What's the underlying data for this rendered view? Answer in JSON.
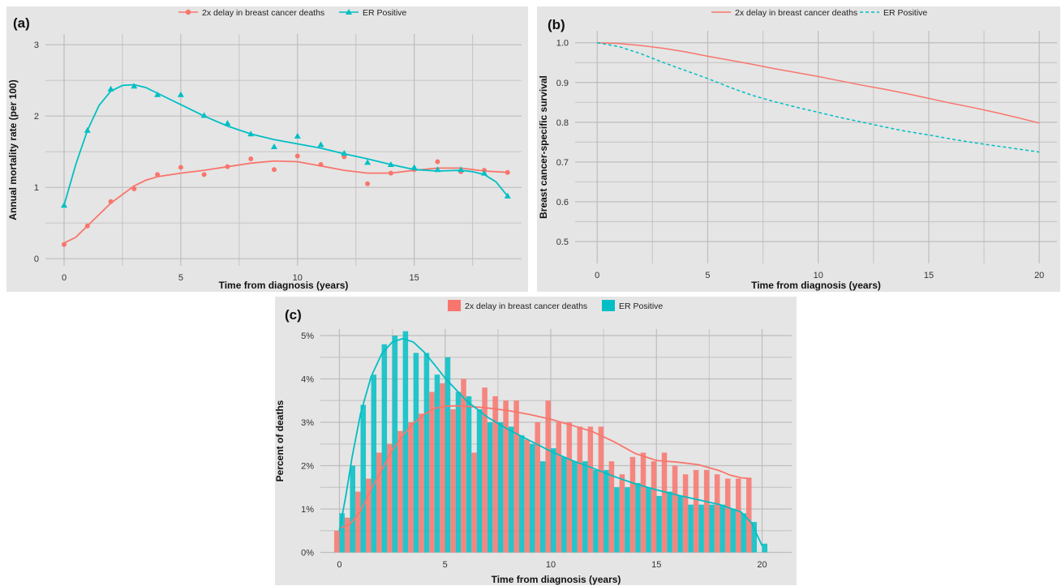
{
  "chart_data": [
    {
      "panel_label": "(a)",
      "type": "scatter",
      "xlabel": "Time from diagnosis (years)",
      "ylabel": "Annual mortality rate (per 100)",
      "xlim": [
        -0.8,
        19.6
      ],
      "ylim": [
        -0.1,
        3.15
      ],
      "xticks": [
        0,
        5,
        10,
        15
      ],
      "yticks": [
        0,
        1,
        2,
        3
      ],
      "grid": true,
      "legend_position": "top",
      "series": [
        {
          "name": "2x delay in breast cancer deaths",
          "color": "#f8766d",
          "marker": "circle",
          "x": [
            0,
            1,
            2,
            3,
            4,
            5,
            6,
            7,
            8,
            9,
            10,
            11,
            12,
            13,
            14,
            15,
            16,
            17,
            18,
            19
          ],
          "y": [
            0.2,
            0.46,
            0.8,
            0.98,
            1.18,
            1.28,
            1.18,
            1.29,
            1.4,
            1.25,
            1.44,
            1.32,
            1.43,
            1.05,
            1.2,
            1.25,
            1.36,
            1.22,
            1.24,
            1.21
          ],
          "smooth_x": [
            0,
            0.5,
            1,
            1.5,
            2,
            2.5,
            3,
            3.5,
            4,
            5,
            6,
            7,
            8,
            9,
            10,
            11,
            12,
            13,
            14,
            15,
            16,
            17,
            17.5,
            18,
            18.5,
            19
          ],
          "smooth_y": [
            0.22,
            0.3,
            0.46,
            0.62,
            0.78,
            0.9,
            1.02,
            1.1,
            1.15,
            1.2,
            1.24,
            1.29,
            1.34,
            1.37,
            1.36,
            1.3,
            1.24,
            1.2,
            1.2,
            1.24,
            1.27,
            1.27,
            1.25,
            1.23,
            1.22,
            1.21
          ]
        },
        {
          "name": "ER Positive",
          "color": "#00bfc4",
          "marker": "triangle",
          "x": [
            0,
            1,
            2,
            3,
            4,
            5,
            6,
            7,
            8,
            9,
            10,
            11,
            12,
            13,
            14,
            15,
            16,
            17,
            18,
            19
          ],
          "y": [
            0.75,
            1.8,
            2.38,
            2.42,
            2.3,
            2.3,
            2.01,
            1.9,
            1.75,
            1.57,
            1.72,
            1.6,
            1.48,
            1.35,
            1.32,
            1.28,
            1.25,
            1.25,
            1.2,
            0.88
          ],
          "smooth_x": [
            0,
            0.5,
            1,
            1.5,
            2,
            2.5,
            3,
            3.5,
            4,
            5,
            6,
            7,
            8,
            9,
            10,
            11,
            12,
            13,
            14,
            15,
            16,
            17,
            17.5,
            18,
            18.5,
            19
          ],
          "smooth_y": [
            0.75,
            1.32,
            1.8,
            2.15,
            2.35,
            2.43,
            2.44,
            2.4,
            2.32,
            2.16,
            2.0,
            1.86,
            1.75,
            1.67,
            1.61,
            1.55,
            1.47,
            1.4,
            1.32,
            1.25,
            1.23,
            1.24,
            1.22,
            1.18,
            1.08,
            0.88
          ]
        }
      ]
    },
    {
      "panel_label": "(b)",
      "type": "line",
      "xlabel": "Time from diagnosis (years)",
      "ylabel": "Breast cancer-specific survival",
      "xlim": [
        -1.0,
        20.8
      ],
      "ylim": [
        0.445,
        1.03
      ],
      "xticks": [
        0,
        5,
        10,
        15,
        20
      ],
      "yticks": [
        0.5,
        0.6,
        0.7,
        0.8,
        0.9,
        1.0
      ],
      "ytick_labels": [
        "0.5",
        "0.6",
        "0.7",
        "0.8",
        "0.9",
        "1.0"
      ],
      "grid": true,
      "legend_position": "top",
      "series": [
        {
          "name": "2x delay in breast cancer deaths",
          "color": "#f8766d",
          "dash": "solid",
          "x": [
            0,
            1,
            2,
            3,
            4,
            5,
            6,
            7,
            8,
            9,
            10,
            11,
            12,
            13,
            14,
            15,
            16,
            17,
            18,
            19,
            20
          ],
          "y": [
            1.0,
            0.998,
            0.993,
            0.986,
            0.977,
            0.966,
            0.956,
            0.946,
            0.935,
            0.925,
            0.915,
            0.904,
            0.893,
            0.883,
            0.872,
            0.86,
            0.848,
            0.837,
            0.825,
            0.812,
            0.798
          ]
        },
        {
          "name": "ER Positive",
          "color": "#00bfc4",
          "dash": "dashed",
          "x": [
            0,
            1,
            2,
            3,
            4,
            5,
            6,
            7,
            8,
            9,
            10,
            11,
            12,
            13,
            14,
            15,
            16,
            17,
            18,
            19,
            20
          ],
          "y": [
            1.0,
            0.99,
            0.972,
            0.95,
            0.93,
            0.91,
            0.888,
            0.868,
            0.852,
            0.838,
            0.825,
            0.812,
            0.8,
            0.788,
            0.777,
            0.768,
            0.758,
            0.749,
            0.741,
            0.733,
            0.725
          ]
        }
      ]
    },
    {
      "panel_label": "(c)",
      "type": "bar",
      "xlabel": "Time from diagnosis (years)",
      "ylabel": "Percent of deaths",
      "xlim": [
        -0.9,
        21.4
      ],
      "ylim": [
        -0.0001,
        0.0515
      ],
      "xticks": [
        0,
        5,
        10,
        15,
        20
      ],
      "yticks": [
        0,
        0.01,
        0.02,
        0.03,
        0.04,
        0.05
      ],
      "ytick_labels": [
        "0%",
        "1%",
        "2%",
        "3%",
        "4%",
        "5%"
      ],
      "grid": true,
      "legend_position": "top",
      "bin_width": 0.5,
      "series": [
        {
          "name": "2x delay in breast cancer deaths",
          "color": "#f8766d",
          "x": [
            0,
            0.5,
            1,
            1.5,
            2,
            2.5,
            3,
            3.5,
            4,
            4.5,
            5,
            5.5,
            6,
            6.5,
            7,
            7.5,
            8,
            8.5,
            9,
            9.5,
            10,
            10.5,
            11,
            11.5,
            12,
            12.5,
            13,
            13.5,
            14,
            14.5,
            15,
            15.5,
            16,
            16.5,
            17,
            17.5,
            18,
            18.5,
            19,
            19.5
          ],
          "values": [
            0.005,
            0.008,
            0.014,
            0.017,
            0.023,
            0.025,
            0.028,
            0.03,
            0.032,
            0.037,
            0.039,
            0.033,
            0.04,
            0.023,
            0.038,
            0.036,
            0.035,
            0.035,
            0.026,
            0.03,
            0.035,
            0.03,
            0.03,
            0.029,
            0.029,
            0.029,
            0.021,
            0.018,
            0.022,
            0.023,
            0.021,
            0.023,
            0.02,
            0.018,
            0.019,
            0.019,
            0.018,
            0.017,
            0.017,
            0.017
          ],
          "smooth_x": [
            0,
            0.5,
            1,
            1.5,
            2,
            2.5,
            3,
            3.5,
            4,
            4.5,
            5,
            5.5,
            6,
            7,
            8,
            9,
            10,
            11,
            12,
            13,
            14,
            15,
            16,
            17,
            18,
            18.5,
            19,
            19.5
          ],
          "smooth_y": [
            0.0055,
            0.0065,
            0.0095,
            0.0145,
            0.019,
            0.0235,
            0.027,
            0.0297,
            0.0318,
            0.0332,
            0.0337,
            0.0338,
            0.0337,
            0.0333,
            0.0327,
            0.0318,
            0.0307,
            0.0293,
            0.0278,
            0.0255,
            0.0228,
            0.0212,
            0.0208,
            0.0202,
            0.0188,
            0.0178,
            0.0172,
            0.017
          ]
        },
        {
          "name": "ER Positive",
          "color": "#00bfc4",
          "x": [
            0,
            0.5,
            1,
            1.5,
            2,
            2.5,
            3,
            3.5,
            4,
            4.5,
            5,
            5.5,
            6,
            6.5,
            7,
            7.5,
            8,
            8.5,
            9,
            9.5,
            10,
            10.5,
            11,
            11.5,
            12,
            12.5,
            13,
            13.5,
            14,
            14.5,
            15,
            15.5,
            16,
            16.5,
            17,
            17.5,
            18,
            18.5,
            19,
            19.5,
            20
          ],
          "values": [
            0.009,
            0.02,
            0.034,
            0.041,
            0.048,
            0.05,
            0.051,
            0.046,
            0.046,
            0.041,
            0.045,
            0.037,
            0.036,
            0.033,
            0.03,
            0.03,
            0.029,
            0.027,
            0.025,
            0.021,
            0.024,
            0.022,
            0.021,
            0.021,
            0.019,
            0.019,
            0.015,
            0.015,
            0.016,
            0.015,
            0.013,
            0.014,
            0.013,
            0.011,
            0.011,
            0.011,
            0.011,
            0.01,
            0.009,
            0.007,
            0.002
          ],
          "smooth_x": [
            0,
            0.3,
            0.6,
            1,
            1.5,
            2,
            2.5,
            3,
            3.5,
            4,
            4.5,
            5,
            6,
            7,
            8,
            9,
            10,
            11,
            12,
            13,
            14,
            15,
            16,
            17,
            18,
            19,
            19.5,
            20
          ],
          "smooth_y": [
            0.005,
            0.013,
            0.022,
            0.032,
            0.0405,
            0.0458,
            0.0485,
            0.0493,
            0.0485,
            0.0462,
            0.0433,
            0.0402,
            0.035,
            0.0312,
            0.0283,
            0.0258,
            0.0233,
            0.0212,
            0.0194,
            0.0175,
            0.0158,
            0.0144,
            0.0132,
            0.0121,
            0.011,
            0.0093,
            0.0068,
            0.0015
          ]
        }
      ]
    }
  ]
}
